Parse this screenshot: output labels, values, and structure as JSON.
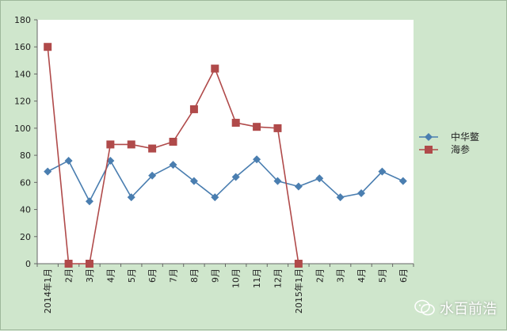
{
  "chart_data": {
    "type": "line",
    "categories": [
      "2014年1月",
      "2月",
      "3月",
      "4月",
      "5月",
      "6月",
      "7月",
      "8月",
      "9月",
      "10月",
      "11月",
      "12月",
      "2015年1月",
      "2月",
      "3月",
      "4月",
      "5月",
      "6月"
    ],
    "series": [
      {
        "name": "中华鳖",
        "color": "#4a7eb0",
        "marker": "diamond",
        "values": [
          68,
          76,
          46,
          76,
          49,
          65,
          73,
          61,
          49,
          64,
          77,
          61,
          57,
          63,
          49,
          52,
          68,
          61
        ]
      },
      {
        "name": "海参",
        "color": "#b04a4a",
        "marker": "square",
        "values": [
          160,
          0,
          0,
          88,
          88,
          85,
          90,
          114,
          144,
          104,
          101,
          100,
          0,
          null,
          null,
          null,
          null,
          null
        ]
      }
    ],
    "yticks": [
      "0",
      "20",
      "40",
      "60",
      "80",
      "100",
      "120",
      "140",
      "160",
      "180"
    ],
    "ylim": [
      0,
      180
    ],
    "grid": false,
    "legend": "right"
  },
  "watermark": {
    "text": "水百前浩",
    "icon": "wechat-icon"
  }
}
